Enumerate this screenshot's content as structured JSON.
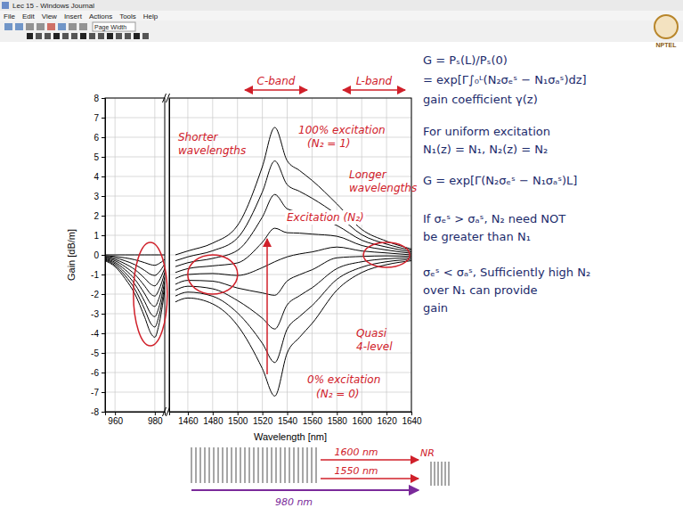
{
  "window": {
    "title": "Lec 15 - Windows Journal",
    "menu": [
      "File",
      "Edit",
      "View",
      "Insert",
      "Actions",
      "Tools",
      "Help"
    ],
    "zoom": "Page Width"
  },
  "logo": "NPTEL",
  "board": [
    "G = Pₛ(L)/Pₛ(0)",
    "= exp[Γ∫₀ᴸ(N₂σₑˢ − N₁σₐˢ)dz]",
    "gain coefficient γ(z)",
    "For uniform excitation",
    "N₁(z) = N₁, N₂(z) = N₂",
    "G = exp[Γ(N₂σₑˢ − N₁σₐˢ)L]",
    "If σₑˢ > σₐˢ, N₂ need NOT",
    "be greater than N₁",
    "σₑˢ < σₐˢ, Sufficiently high N₂",
    "over N₁ can provide",
    "gain"
  ],
  "schematic": {
    "labels": [
      "1600 nm",
      "1550 nm",
      "980 nm",
      "NR"
    ]
  },
  "chart_data": [
    {
      "type": "line",
      "ylabel": "Gain [dB/m]",
      "grid": true,
      "xlim": [
        955,
        985
      ],
      "xticks": [
        960,
        980
      ],
      "ylim": [
        -8,
        8
      ],
      "yticks": [
        -8,
        -7,
        -6,
        -5,
        -4,
        -3,
        -2,
        -1,
        0,
        1,
        2,
        3,
        4,
        5,
        6,
        7,
        8
      ],
      "x": [
        955,
        960,
        965,
        970,
        975,
        978,
        980,
        982,
        985
      ],
      "series": [
        {
          "color": "#000000",
          "values": [
            -0.3,
            -0.6,
            -1.2,
            -2.0,
            -3.2,
            -4.0,
            -4.2,
            -3.6,
            -1.8
          ]
        },
        {
          "color": "#000000",
          "values": [
            -0.26,
            -0.53,
            -1.05,
            -1.75,
            -2.8,
            -3.5,
            -3.68,
            -3.15,
            -1.58
          ]
        },
        {
          "color": "#000000",
          "values": [
            -0.23,
            -0.45,
            -0.9,
            -1.5,
            -2.4,
            -3.0,
            -3.15,
            -2.7,
            -1.35
          ]
        },
        {
          "color": "#000000",
          "values": [
            -0.19,
            -0.38,
            -0.75,
            -1.25,
            -2.0,
            -2.5,
            -2.63,
            -2.25,
            -1.13
          ]
        },
        {
          "color": "#000000",
          "values": [
            -0.15,
            -0.3,
            -0.6,
            -1.0,
            -1.6,
            -2.0,
            -2.1,
            -1.8,
            -0.9
          ]
        },
        {
          "color": "#000000",
          "values": [
            -0.11,
            -0.23,
            -0.45,
            -0.75,
            -1.2,
            -1.5,
            -1.58,
            -1.35,
            -0.68
          ]
        },
        {
          "color": "#000000",
          "values": [
            -0.08,
            -0.15,
            -0.3,
            -0.5,
            -0.8,
            -1.0,
            -1.05,
            -0.9,
            -0.45
          ]
        },
        {
          "color": "#000000",
          "values": [
            -0.04,
            -0.08,
            -0.15,
            -0.25,
            -0.4,
            -0.5,
            -0.53,
            -0.45,
            -0.23
          ]
        },
        {
          "color": "#000000",
          "values": [
            0,
            0,
            0,
            0,
            0,
            0,
            0,
            0,
            0
          ]
        }
      ]
    },
    {
      "type": "line",
      "xlabel": "Wavelength [nm]",
      "grid": true,
      "tick_labels": "x",
      "xlim": [
        1445,
        1640
      ],
      "xticks": [
        1460,
        1480,
        1500,
        1520,
        1540,
        1560,
        1580,
        1600,
        1620,
        1640
      ],
      "ylim": [
        -8,
        8
      ],
      "yticks": [
        -8,
        -7,
        -6,
        -5,
        -4,
        -3,
        -2,
        -1,
        0,
        1,
        2,
        3,
        4,
        5,
        6,
        7,
        8
      ],
      "x": [
        1450,
        1460,
        1480,
        1500,
        1520,
        1530,
        1540,
        1550,
        1560,
        1580,
        1600,
        1620,
        1640
      ],
      "series": [
        {
          "color": "#000000",
          "values": [
            -2.4,
            -2.2,
            -2.5,
            -3.6,
            -5.8,
            -7.2,
            -5.0,
            -4.2,
            -3.5,
            -1.8,
            -0.9,
            -0.5,
            -0.3
          ]
        },
        {
          "color": "#000000",
          "values": [
            -2.1,
            -1.9,
            -2.11,
            -2.96,
            -4.51,
            -5.49,
            -3.78,
            -3.14,
            -2.59,
            -1.25,
            -0.63,
            -0.35,
            -0.23
          ]
        },
        {
          "color": "#000000",
          "values": [
            -1.8,
            -1.6,
            -1.73,
            -2.33,
            -3.23,
            -3.78,
            -2.55,
            -2.08,
            -1.68,
            -0.7,
            -0.35,
            -0.2,
            -0.15
          ]
        },
        {
          "color": "#000000",
          "values": [
            -1.5,
            -1.3,
            -1.34,
            -1.69,
            -1.94,
            -2.06,
            -1.33,
            -1.01,
            -0.76,
            -0.15,
            -0.08,
            -0.05,
            -0.08
          ]
        },
        {
          "color": "#000000",
          "values": [
            -1.2,
            -1.0,
            -0.95,
            -1.05,
            -0.65,
            -0.35,
            -0.1,
            0.05,
            0.15,
            0.4,
            0.2,
            0.1,
            0.0
          ]
        },
        {
          "color": "#000000",
          "values": [
            -0.9,
            -0.7,
            -0.56,
            -0.41,
            0.64,
            1.36,
            1.13,
            1.11,
            1.06,
            0.95,
            0.48,
            0.25,
            0.08
          ]
        },
        {
          "color": "#000000",
          "values": [
            -0.6,
            -0.4,
            -0.18,
            0.23,
            1.93,
            3.08,
            2.35,
            2.18,
            1.98,
            1.5,
            0.75,
            0.4,
            0.15
          ]
        },
        {
          "color": "#000000",
          "values": [
            -0.3,
            -0.1,
            0.21,
            0.86,
            3.21,
            4.79,
            3.58,
            3.24,
            2.89,
            2.05,
            1.03,
            0.55,
            0.23
          ]
        },
        {
          "color": "#000000",
          "values": [
            0.0,
            0.2,
            0.6,
            1.5,
            4.5,
            6.5,
            4.8,
            4.3,
            3.8,
            2.6,
            1.3,
            0.7,
            0.3
          ]
        }
      ],
      "annotations": [
        "C-band",
        "L-band",
        "100% excitation",
        "(N₂ = 1)",
        "Shorter wavelengths",
        "Excitation (N₂)",
        "Longer wavelengths",
        "0% excitation",
        "(N₂ = 0)",
        "Quasi 4-level"
      ]
    }
  ]
}
